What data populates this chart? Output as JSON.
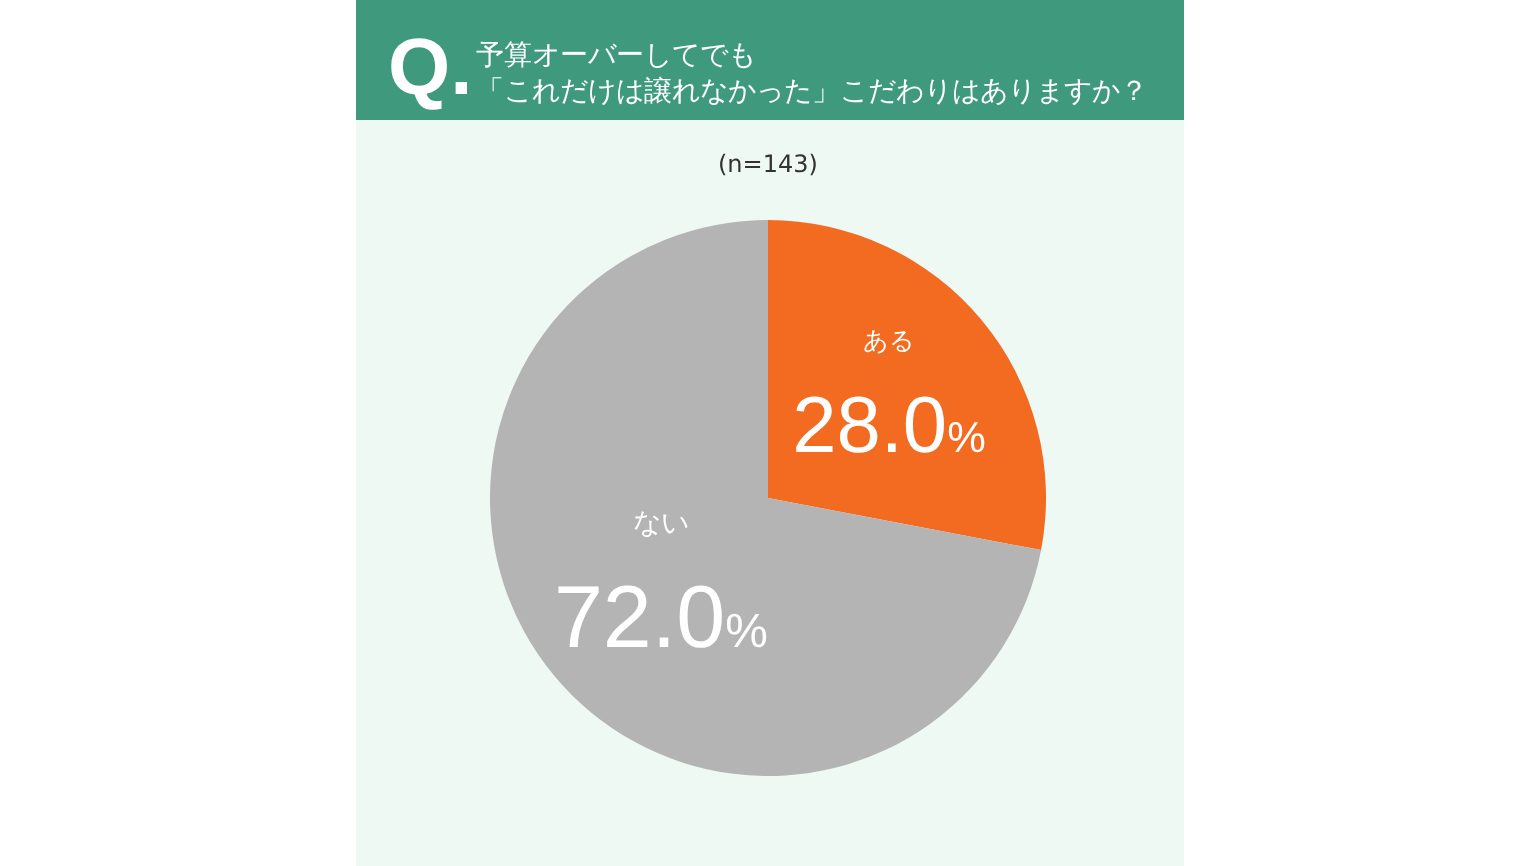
{
  "chart_data": {
    "type": "pie",
    "title": "予算オーバーしてでも「これだけは譲れなかった」こだわりはありますか？",
    "subtitle": "(n=143)",
    "annotations": [
      "Q."
    ],
    "categories": [
      "ある",
      "ない"
    ],
    "values": [
      28.0,
      72.0
    ],
    "colors": [
      "#f26b21",
      "#b4b4b4"
    ],
    "value_labels": [
      "28.0%",
      "72.0%"
    ],
    "legend": false
  }
}
